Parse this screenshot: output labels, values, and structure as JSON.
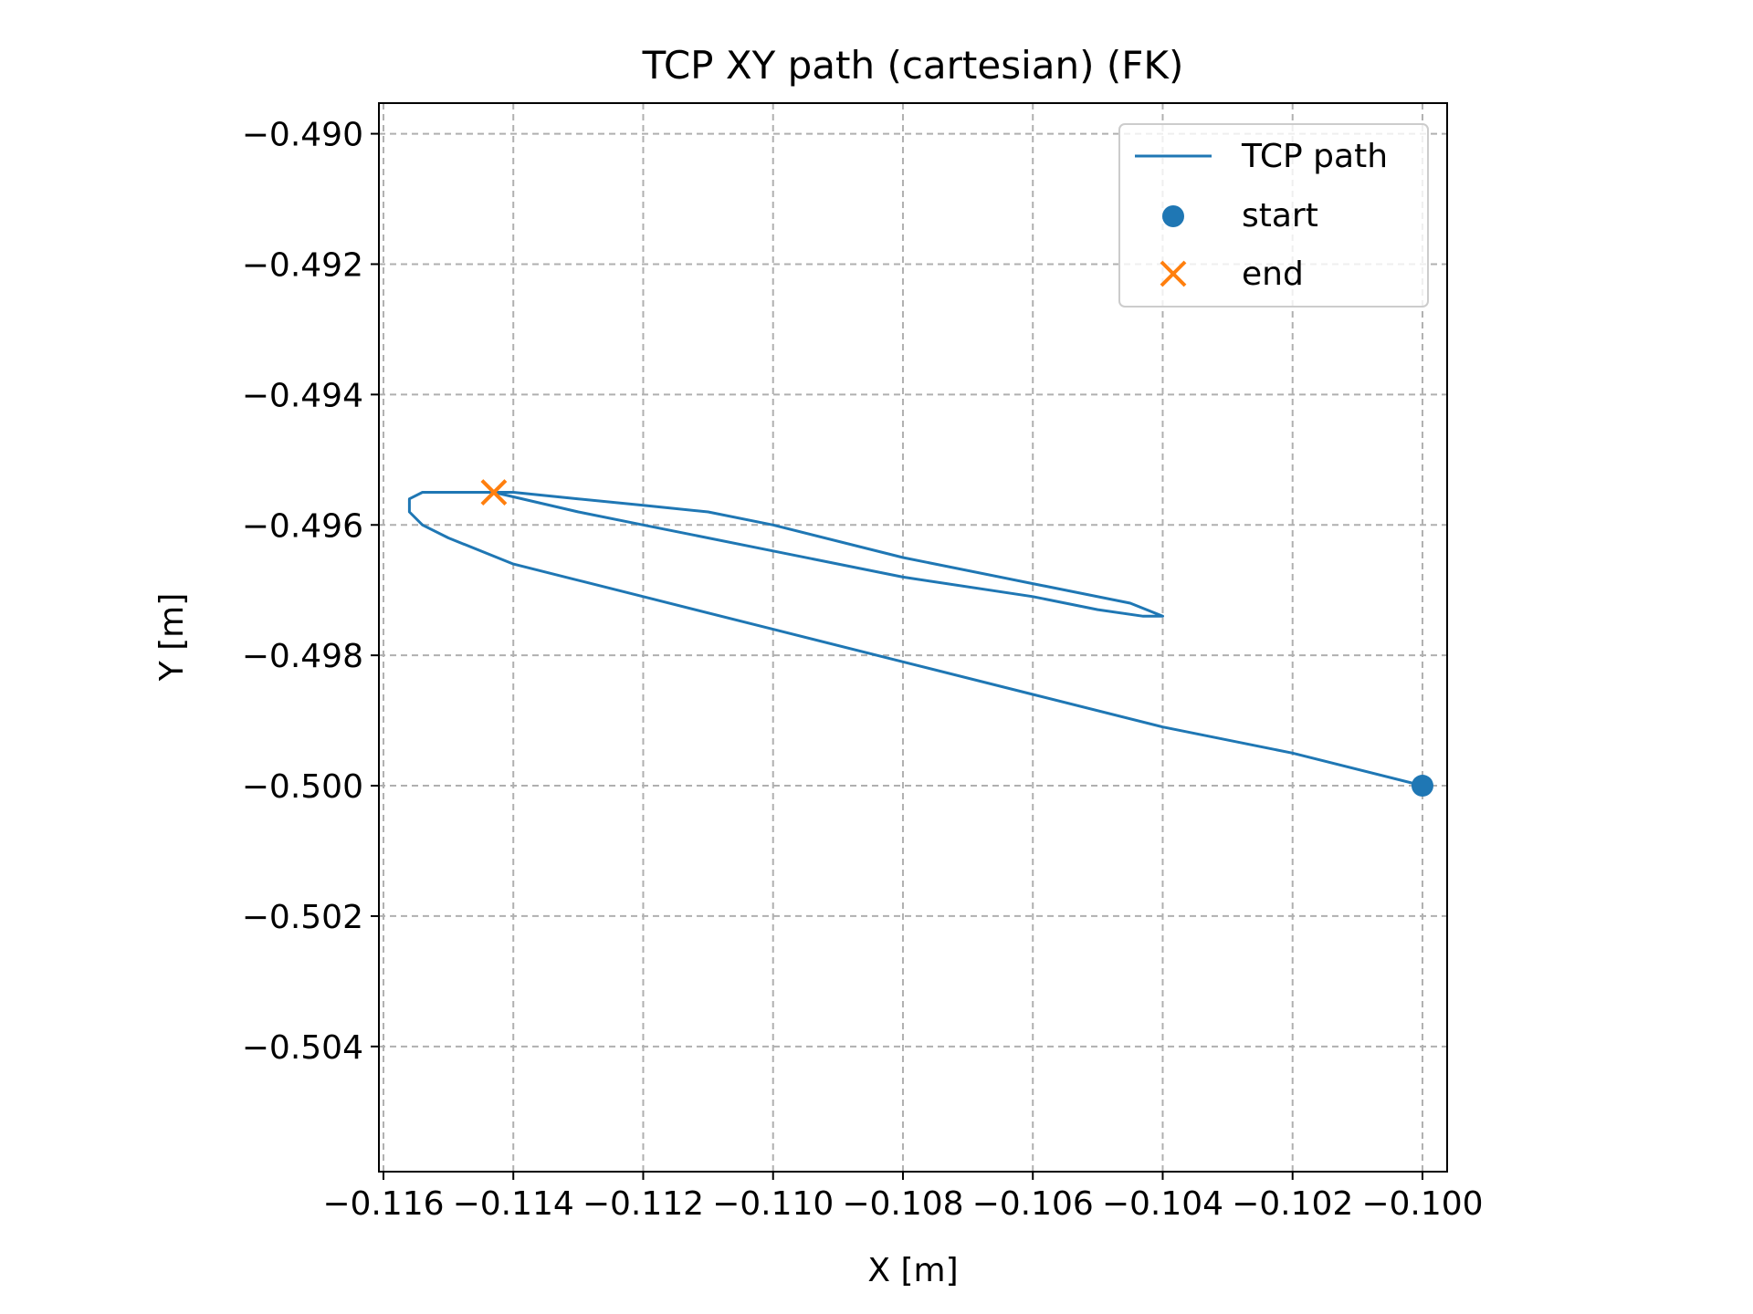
{
  "chart_data": {
    "type": "line",
    "title": "TCP XY path (cartesian) (FK)",
    "xlabel": "X [m]",
    "ylabel": "Y [m]",
    "xlim": [
      -0.11607,
      -0.09962
    ],
    "ylim": [
      -0.50592,
      -0.48953
    ],
    "xticks": [
      -0.116,
      -0.114,
      -0.112,
      -0.11,
      -0.108,
      -0.106,
      -0.104,
      -0.102,
      -0.1
    ],
    "xtick_labels": [
      "−0.116",
      "−0.114",
      "−0.112",
      "−0.110",
      "−0.108",
      "−0.106",
      "−0.104",
      "−0.102",
      "−0.100"
    ],
    "yticks": [
      -0.49,
      -0.492,
      -0.494,
      -0.496,
      -0.498,
      -0.5,
      -0.502,
      -0.504
    ],
    "ytick_labels": [
      "−0.490",
      "−0.492",
      "−0.494",
      "−0.496",
      "−0.498",
      "−0.500",
      "−0.502",
      "−0.504"
    ],
    "grid": true,
    "legend_position": "top-right",
    "series": [
      {
        "name": "TCP path",
        "kind": "line",
        "color": "#1f77b4",
        "x": [
          -0.1,
          -0.102,
          -0.104,
          -0.106,
          -0.108,
          -0.11,
          -0.112,
          -0.114,
          -0.115,
          -0.1154,
          -0.1156,
          -0.1156,
          -0.1154,
          -0.115,
          -0.1145,
          -0.114,
          -0.113,
          -0.112,
          -0.111,
          -0.11,
          -0.108,
          -0.106,
          -0.1045,
          -0.104,
          -0.1043,
          -0.105,
          -0.106,
          -0.108,
          -0.11,
          -0.112,
          -0.113,
          -0.1143
        ],
        "y": [
          -0.5,
          -0.4995,
          -0.4991,
          -0.4986,
          -0.4981,
          -0.4976,
          -0.4971,
          -0.4966,
          -0.4962,
          -0.496,
          -0.4958,
          -0.4956,
          -0.4955,
          -0.4955,
          -0.4955,
          -0.4955,
          -0.4956,
          -0.4957,
          -0.4958,
          -0.496,
          -0.4965,
          -0.4969,
          -0.4972,
          -0.4974,
          -0.4974,
          -0.4973,
          -0.4971,
          -0.4968,
          -0.4964,
          -0.496,
          -0.4958,
          -0.4955
        ]
      },
      {
        "name": "start",
        "kind": "point",
        "marker": "circle",
        "color": "#1f77b4",
        "x": [
          -0.1
        ],
        "y": [
          -0.5
        ]
      },
      {
        "name": "end",
        "kind": "point",
        "marker": "x",
        "color": "#ff7f0e",
        "x": [
          -0.1143
        ],
        "y": [
          -0.4955
        ]
      }
    ]
  }
}
